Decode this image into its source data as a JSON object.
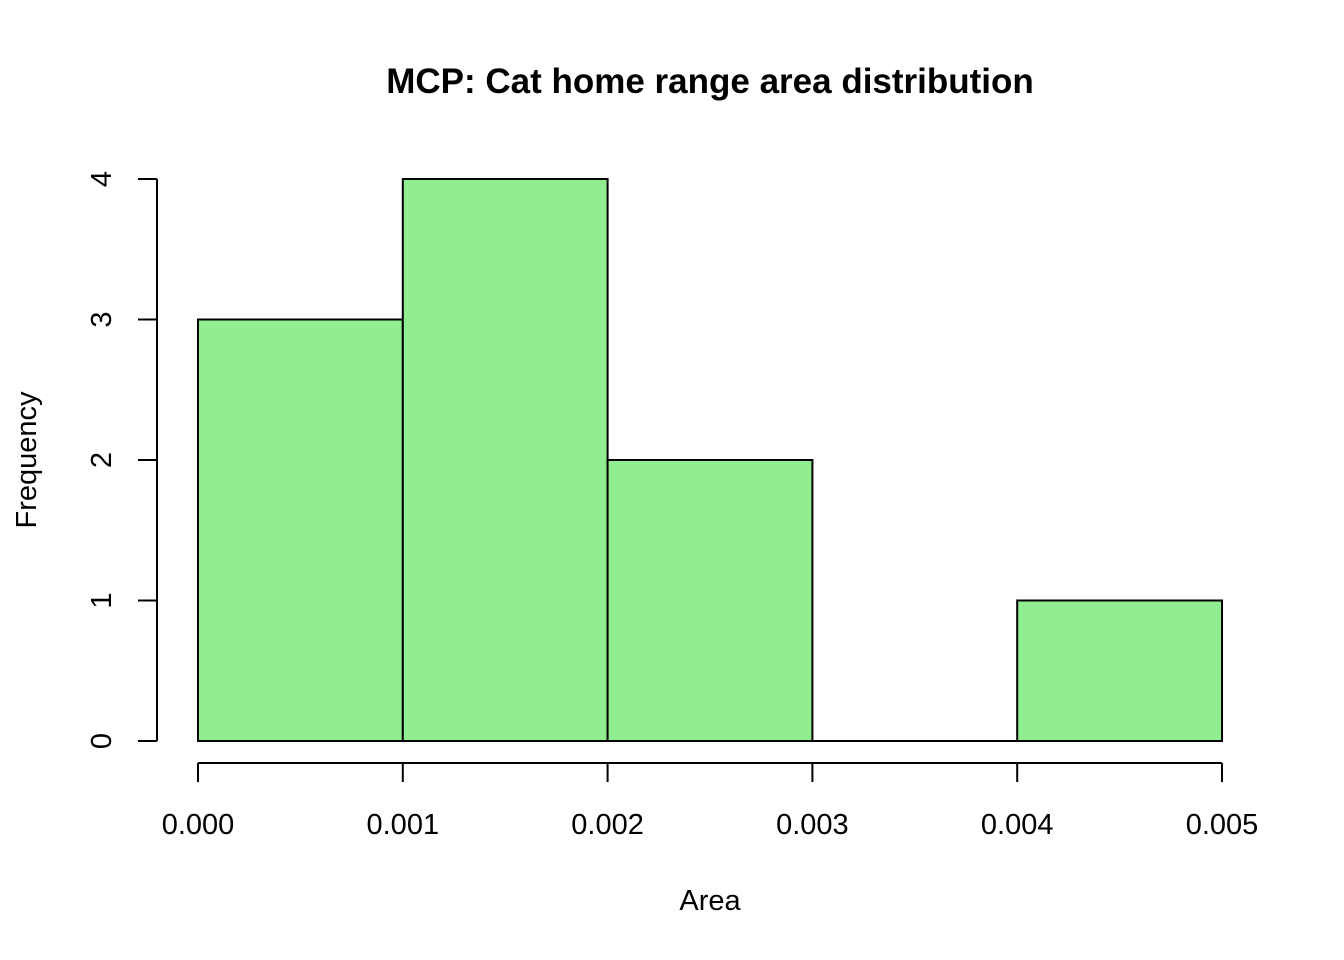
{
  "chart_data": {
    "type": "bar",
    "subtype": "histogram",
    "title": "MCP: Cat home range area distribution",
    "xlabel": "Area",
    "ylabel": "Frequency",
    "bins": [
      {
        "start": 0.0,
        "end": 0.001,
        "count": 3
      },
      {
        "start": 0.001,
        "end": 0.002,
        "count": 4
      },
      {
        "start": 0.002,
        "end": 0.003,
        "count": 2
      },
      {
        "start": 0.003,
        "end": 0.004,
        "count": 0
      },
      {
        "start": 0.004,
        "end": 0.005,
        "count": 1
      }
    ],
    "xlim": [
      0,
      0.005
    ],
    "ylim": [
      0,
      4
    ],
    "x_ticks": [
      "0.000",
      "0.001",
      "0.002",
      "0.003",
      "0.004",
      "0.005"
    ],
    "y_ticks": [
      "0",
      "1",
      "2",
      "3",
      "4"
    ],
    "bar_color": "#90EE90",
    "grid": false,
    "legend": "none"
  }
}
